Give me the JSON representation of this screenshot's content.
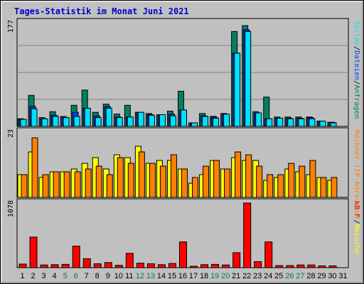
{
  "title": "Tages-Statistik im Monat Juni 2021",
  "colors": {
    "background": "#c0c0c0",
    "title": "#0000cc",
    "weekday_label": "#000000",
    "weekend_label": "#008040",
    "hits": "#008060",
    "files": "#0040ff",
    "pages": "#00e0ff",
    "visits": "#ff8000",
    "sites": "#ffff00",
    "kbytes": "#ff0000",
    "legend_hits": "#008040",
    "legend_files": "#0040ff",
    "legend_pages": "#00e0ff",
    "legend_visits": "#ff8000",
    "legend_sites": "#ffff00",
    "legend_kbytes": "#ff0000"
  },
  "chart_data": [
    {
      "type": "bar",
      "panel": "top",
      "ymax_label": "177",
      "ylim": [
        0,
        177
      ],
      "legend": [
        {
          "text": "Anfragen",
          "color_key": "legend_hits"
        },
        {
          "text": "Dateien",
          "color_key": "legend_files"
        },
        {
          "text": "Seiten",
          "color_key": "legend_pages"
        }
      ],
      "categories": [
        "1",
        "2",
        "3",
        "4",
        "5",
        "6",
        "7",
        "8",
        "9",
        "10",
        "11",
        "12",
        "13",
        "14",
        "15",
        "16",
        "17",
        "18",
        "19",
        "20",
        "21",
        "22",
        "23",
        "24",
        "25",
        "26",
        "27",
        "28",
        "29",
        "30",
        "31"
      ],
      "series": [
        {
          "name": "Anfragen",
          "color_key": "hits",
          "values": [
            13,
            53,
            15,
            25,
            17,
            36,
            62,
            24,
            38,
            21,
            36,
            24,
            22,
            20,
            26,
            60,
            6,
            22,
            17,
            22,
            162,
            172,
            25,
            50,
            16,
            16,
            16,
            16,
            9,
            7,
            0
          ]
        },
        {
          "name": "Dateien",
          "color_key": "files",
          "values": [
            12,
            34,
            13,
            19,
            15,
            24,
            31,
            18,
            34,
            16,
            16,
            24,
            20,
            20,
            21,
            28,
            6,
            18,
            16,
            21,
            125,
            165,
            23,
            13,
            14,
            14,
            14,
            15,
            9,
            7,
            0
          ]
        },
        {
          "name": "Seiten",
          "color_key": "pages",
          "values": [
            12,
            30,
            13,
            17,
            15,
            17,
            31,
            15,
            31,
            15,
            16,
            24,
            19,
            20,
            18,
            28,
            6,
            17,
            14,
            21,
            125,
            162,
            23,
            13,
            14,
            13,
            13,
            13,
            9,
            6,
            0
          ]
        }
      ]
    },
    {
      "type": "bar",
      "panel": "middle",
      "ymax_label": "23",
      "ylim": [
        0,
        23
      ],
      "legend": [
        {
          "text": "Rechner (IP-Adressen)",
          "color_key": "legend_visits"
        },
        {
          "text": "Besuche",
          "color_key": "legend_sites"
        }
      ],
      "categories": [
        "1",
        "2",
        "3",
        "4",
        "5",
        "6",
        "7",
        "8",
        "9",
        "10",
        "11",
        "12",
        "13",
        "14",
        "15",
        "16",
        "17",
        "18",
        "19",
        "20",
        "21",
        "22",
        "23",
        "24",
        "25",
        "26",
        "27",
        "28",
        "29",
        "30",
        "31"
      ],
      "series": [
        {
          "name": "Besuche",
          "color_key": "sites",
          "values": [
            8,
            16,
            7,
            9,
            9,
            10,
            12,
            14,
            10,
            15,
            14,
            18,
            12,
            13,
            13,
            10,
            5,
            8,
            13,
            10,
            14,
            13,
            13,
            6,
            7,
            10,
            9,
            8,
            7,
            6,
            0
          ]
        },
        {
          "name": "Rechner",
          "color_key": "visits",
          "values": [
            8,
            21,
            8,
            9,
            9,
            9,
            10,
            11,
            8,
            14,
            12,
            16,
            12,
            11,
            15,
            10,
            7,
            11,
            13,
            10,
            16,
            15,
            11,
            8,
            8,
            12,
            11,
            13,
            7,
            7,
            0
          ]
        }
      ]
    },
    {
      "type": "bar",
      "panel": "bottom",
      "ymax_label": "1078",
      "ylim": [
        0,
        1078
      ],
      "legend": [
        {
          "text": "kB F",
          "color_key": "legend_kbytes"
        }
      ],
      "categories": [
        "1",
        "2",
        "3",
        "4",
        "5",
        "6",
        "7",
        "8",
        "9",
        "10",
        "11",
        "12",
        "13",
        "14",
        "15",
        "16",
        "17",
        "18",
        "19",
        "20",
        "21",
        "22",
        "23",
        "24",
        "25",
        "26",
        "27",
        "28",
        "29",
        "30",
        "31"
      ],
      "series": [
        {
          "name": "kB F",
          "color_key": "kbytes",
          "values": [
            60,
            510,
            45,
            50,
            55,
            360,
            150,
            65,
            85,
            40,
            240,
            75,
            65,
            50,
            70,
            430,
            20,
            50,
            55,
            45,
            250,
            1078,
            100,
            430,
            35,
            35,
            45,
            45,
            30,
            30,
            0
          ]
        }
      ]
    }
  ],
  "x_axis": {
    "labels": [
      "1",
      "2",
      "3",
      "4",
      "5",
      "6",
      "7",
      "8",
      "9",
      "10",
      "11",
      "12",
      "13",
      "14",
      "15",
      "16",
      "17",
      "18",
      "19",
      "20",
      "21",
      "22",
      "23",
      "24",
      "25",
      "26",
      "27",
      "28",
      "29",
      "30",
      "31"
    ],
    "weekend": [
      false,
      false,
      false,
      false,
      true,
      true,
      false,
      false,
      false,
      false,
      false,
      true,
      true,
      false,
      false,
      false,
      false,
      false,
      true,
      true,
      false,
      false,
      false,
      false,
      false,
      true,
      true,
      false,
      false,
      false,
      false
    ]
  }
}
